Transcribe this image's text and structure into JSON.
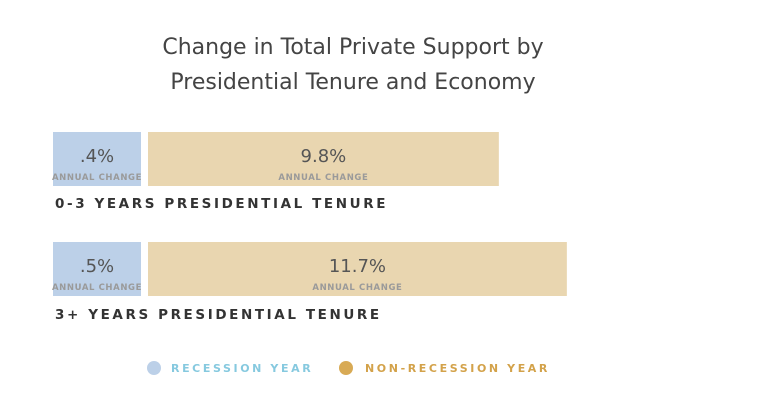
{
  "chart_data": {
    "type": "bar",
    "orientation": "horizontal",
    "stacked": true,
    "title": "Change in Total Private Support by Presidential Tenure and Economy",
    "title_lines": [
      "Change in Total Private Support by",
      "Presidential Tenure and Economy"
    ],
    "categories": [
      "0-3 YEARS PRESIDENTIAL TENURE",
      "3+ YEARS PRESIDENTIAL TENURE"
    ],
    "series": [
      {
        "name": "RECESSION YEAR",
        "values": [
          0.4,
          0.5
        ],
        "labels": [
          ".4%",
          ".5%"
        ],
        "sublabel": "ANNUAL CHANGE",
        "color": "#bcd0e8",
        "legend_color": "#bcd0e8",
        "legend_text_color": "#86c9df"
      },
      {
        "name": "NON-RECESSION YEAR",
        "values": [
          9.8,
          11.7
        ],
        "labels": [
          "9.8%",
          "11.7%"
        ],
        "sublabel": "ANNUAL CHANGE",
        "color": "#e9d6b0",
        "legend_color": "#d8aa55",
        "legend_text_color": "#d3a24a"
      }
    ],
    "xlabel": "",
    "ylabel": "",
    "grid": false,
    "legend": "bottom"
  }
}
